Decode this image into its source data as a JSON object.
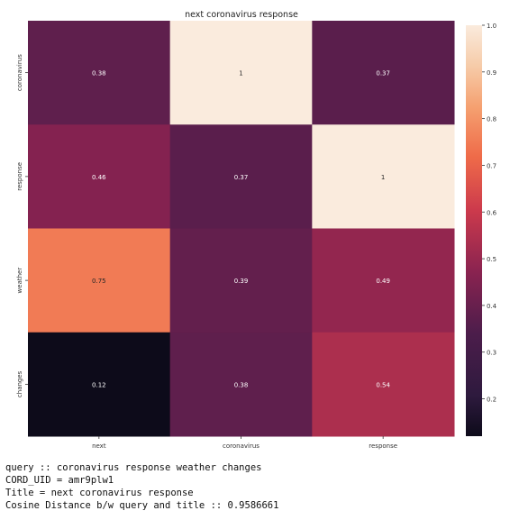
{
  "chart_data": {
    "type": "heatmap",
    "title": "next coronavirus response",
    "xlabel": "",
    "ylabel": "",
    "x_categories": [
      "next",
      "coronavirus",
      "response"
    ],
    "y_categories": [
      "coronavirus",
      "response",
      "weather",
      "changes"
    ],
    "values": [
      [
        0.38,
        1,
        0.37
      ],
      [
        0.46,
        0.37,
        1
      ],
      [
        0.75,
        0.39,
        0.49
      ],
      [
        0.12,
        0.38,
        0.54
      ]
    ],
    "annotations": [
      [
        "0.38",
        "1",
        "0.37"
      ],
      [
        "0.46",
        "0.37",
        "1"
      ],
      [
        "0.75",
        "0.39",
        "0.49"
      ],
      [
        "0.12",
        "0.38",
        "0.54"
      ]
    ],
    "colormap": "rocket",
    "vmin": 0.12,
    "vmax": 1.0,
    "colorbar": {
      "ticks": [
        0.2,
        0.3,
        0.4,
        0.5,
        0.6,
        0.7,
        0.8,
        0.9,
        1.0
      ],
      "tick_labels": [
        "0.2",
        "0.3",
        "0.4",
        "0.5",
        "0.6",
        "0.7",
        "0.8",
        "0.9",
        "1.0"
      ]
    },
    "grid": false,
    "legend": "colorbar-right"
  },
  "output": {
    "query_line": "query :: coronavirus response weather changes",
    "cord_uid_line": "CORD_UID = amr9plw1",
    "title_line": "Title = next coronavirus response",
    "distance_line": "Cosine Distance b/w query and title :: 0.9586661"
  }
}
